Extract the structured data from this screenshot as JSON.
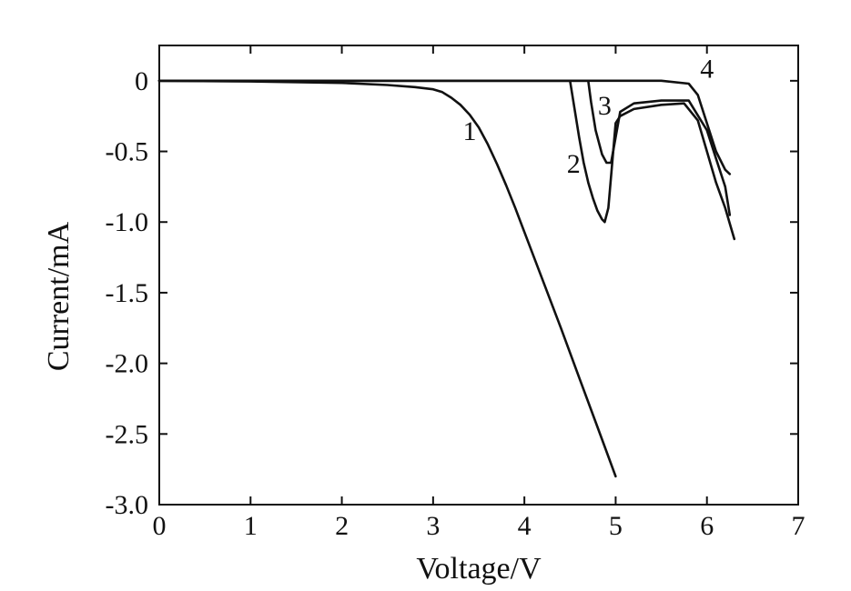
{
  "chart_data": {
    "type": "line",
    "xlabel": "Voltage/V",
    "ylabel": "Current/mA",
    "xlim": [
      0,
      7
    ],
    "ylim": [
      -3.0,
      0.25
    ],
    "x_ticks": [
      "0",
      "1",
      "2",
      "3",
      "4",
      "5",
      "6",
      "7"
    ],
    "x_tick_values": [
      0,
      1,
      2,
      3,
      4,
      5,
      6,
      7
    ],
    "y_ticks": [
      "0",
      "-0.5",
      "-1.0",
      "-1.5",
      "-2.0",
      "-2.5",
      "-3.0"
    ],
    "y_tick_values": [
      0,
      -0.5,
      -1.0,
      -1.5,
      -2.0,
      -2.5,
      -3.0
    ],
    "grid": false,
    "legend": "none",
    "line_color": "#111111",
    "series": [
      {
        "label": "1",
        "x": [
          0,
          1.0,
          2.0,
          2.5,
          2.8,
          3.0,
          3.1,
          3.2,
          3.3,
          3.4,
          3.5,
          3.6,
          3.7,
          3.8,
          3.9,
          4.0,
          4.2,
          4.4,
          4.6,
          4.8,
          5.0
        ],
        "y": [
          0,
          -0.005,
          -0.015,
          -0.03,
          -0.045,
          -0.06,
          -0.08,
          -0.12,
          -0.17,
          -0.24,
          -0.33,
          -0.45,
          -0.59,
          -0.74,
          -0.9,
          -1.07,
          -1.41,
          -1.75,
          -2.1,
          -2.45,
          -2.8
        ]
      },
      {
        "label": "2",
        "x": [
          0,
          4.5,
          4.55,
          4.6,
          4.65,
          4.7,
          4.75,
          4.8,
          4.85,
          4.88,
          4.92,
          4.96,
          5.0,
          5.05,
          5.2,
          5.5,
          5.75,
          5.9,
          6.0,
          6.1,
          6.2,
          6.3
        ],
        "y": [
          0,
          0,
          -0.2,
          -0.4,
          -0.58,
          -0.72,
          -0.83,
          -0.92,
          -0.98,
          -1.0,
          -0.9,
          -0.6,
          -0.3,
          -0.25,
          -0.2,
          -0.17,
          -0.16,
          -0.28,
          -0.5,
          -0.72,
          -0.9,
          -1.12
        ]
      },
      {
        "label": "3",
        "x": [
          0,
          4.7,
          4.73,
          4.78,
          4.85,
          4.9,
          4.95,
          5.0,
          5.05,
          5.2,
          5.5,
          5.8,
          6.0,
          6.1,
          6.2,
          6.25
        ],
        "y": [
          0,
          0,
          -0.15,
          -0.35,
          -0.52,
          -0.58,
          -0.58,
          -0.4,
          -0.22,
          -0.16,
          -0.14,
          -0.14,
          -0.35,
          -0.55,
          -0.75,
          -0.95
        ]
      },
      {
        "label": "4",
        "x": [
          0,
          5.0,
          5.5,
          5.8,
          5.9,
          6.0,
          6.1,
          6.2,
          6.25
        ],
        "y": [
          0,
          0,
          0,
          -0.02,
          -0.1,
          -0.3,
          -0.5,
          -0.63,
          -0.66
        ]
      }
    ],
    "annotations": [
      {
        "text": "1",
        "x": 3.4,
        "y": -0.42
      },
      {
        "text": "2",
        "x": 4.54,
        "y": -0.65
      },
      {
        "text": "3",
        "x": 4.88,
        "y": -0.24
      },
      {
        "text": "4",
        "x": 6.0,
        "y": 0.02
      }
    ]
  }
}
